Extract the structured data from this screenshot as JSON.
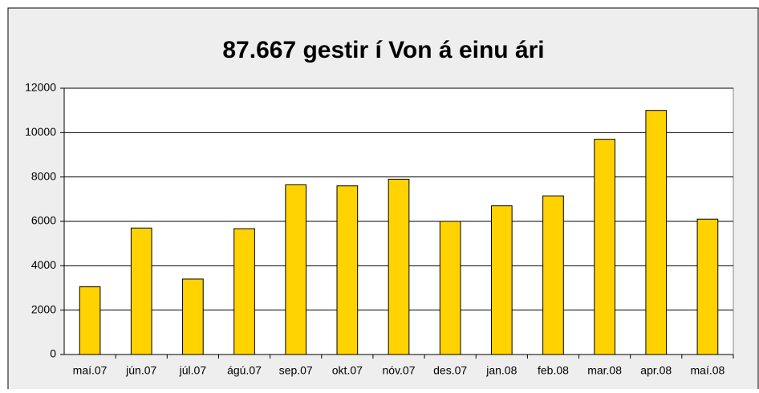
{
  "chart_data": {
    "type": "bar",
    "title": "87.667 gestir í Von á einu ári",
    "categories": [
      "maí.07",
      "jún.07",
      "júl.07",
      "ágú.07",
      "sep.07",
      "okt.07",
      "nóv.07",
      "des.07",
      "jan.08",
      "feb.08",
      "mar.08",
      "apr.08",
      "maí.08"
    ],
    "values": [
      3050,
      5700,
      3400,
      5670,
      7650,
      7600,
      7900,
      6000,
      6700,
      7150,
      9700,
      11000,
      6100
    ],
    "color": "#ffd200",
    "ylim": [
      0,
      12000
    ],
    "yticks": [
      0,
      2000,
      4000,
      6000,
      8000,
      10000,
      12000
    ],
    "grid": true
  }
}
